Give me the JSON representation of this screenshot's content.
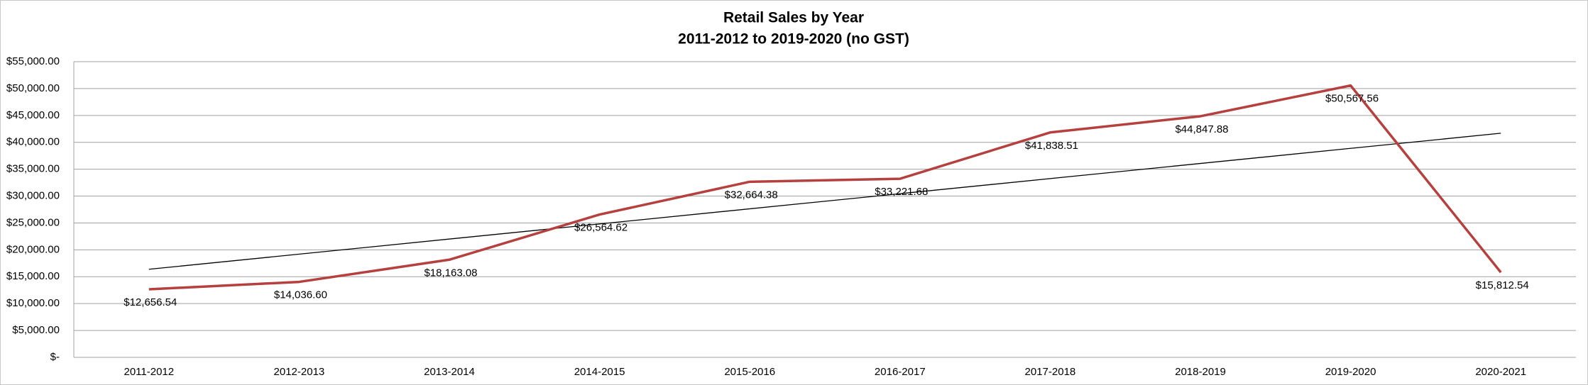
{
  "chart_data": {
    "type": "line",
    "title": "Retail Sales by Year",
    "subtitle": "2011-2012 to 2019-2020 (no GST)",
    "categories": [
      "2011-2012",
      "2012-2013",
      "2013-2014",
      "2014-2015",
      "2015-2016",
      "2016-2017",
      "2017-2018",
      "2018-2019",
      "2019-2020",
      "2020-2021"
    ],
    "series": [
      {
        "name": "Retail Sales",
        "color": "#b5403e",
        "values": [
          12656.54,
          14036.6,
          18163.08,
          26564.62,
          32664.38,
          33221.68,
          41838.51,
          44847.88,
          50567.56,
          15812.54
        ],
        "value_labels": [
          "$12,656.54",
          "$14,036.60",
          "$18,163.08",
          "$26,564.62",
          "$32,664.38",
          "$33,221.68",
          "$41,838.51",
          "$44,847.88",
          "$50,567.56",
          "$15,812.54"
        ]
      }
    ],
    "trendline": "linear",
    "trendline_color": "#000000",
    "ylim": [
      0,
      55000
    ],
    "yticks": [
      {
        "value": 0,
        "label": "$-"
      },
      {
        "value": 5000,
        "label": "$5,000.00"
      },
      {
        "value": 10000,
        "label": "$10,000.00"
      },
      {
        "value": 15000,
        "label": "$15,000.00"
      },
      {
        "value": 20000,
        "label": "$20,000.00"
      },
      {
        "value": 25000,
        "label": "$25,000.00"
      },
      {
        "value": 30000,
        "label": "$30,000.00"
      },
      {
        "value": 35000,
        "label": "$35,000.00"
      },
      {
        "value": 40000,
        "label": "$40,000.00"
      },
      {
        "value": 45000,
        "label": "$45,000.00"
      },
      {
        "value": 50000,
        "label": "$50,000.00"
      },
      {
        "value": 55000,
        "label": "$55,000.00"
      }
    ],
    "grid": true
  }
}
